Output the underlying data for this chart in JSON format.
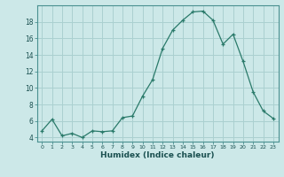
{
  "x": [
    0,
    1,
    2,
    3,
    4,
    5,
    6,
    7,
    8,
    9,
    10,
    11,
    12,
    13,
    14,
    15,
    16,
    17,
    18,
    19,
    20,
    21,
    22,
    23
  ],
  "y": [
    4.8,
    6.2,
    4.2,
    4.5,
    4.0,
    4.8,
    4.7,
    4.8,
    6.4,
    6.6,
    9.0,
    11.0,
    14.8,
    17.0,
    18.2,
    19.2,
    19.3,
    18.2,
    15.3,
    16.5,
    13.2,
    9.5,
    7.2,
    6.3
  ],
  "xlabel": "Humidex (Indice chaleur)",
  "line_color": "#2a7a6a",
  "marker": "+",
  "bg_color": "#cce8e8",
  "grid_color": "#aad0d0",
  "ylim": [
    3.5,
    20.0
  ],
  "xlim": [
    -0.5,
    23.5
  ],
  "yticks": [
    4,
    6,
    8,
    10,
    12,
    14,
    16,
    18
  ],
  "xticks": [
    0,
    1,
    2,
    3,
    4,
    5,
    6,
    7,
    8,
    9,
    10,
    11,
    12,
    13,
    14,
    15,
    16,
    17,
    18,
    19,
    20,
    21,
    22,
    23
  ]
}
